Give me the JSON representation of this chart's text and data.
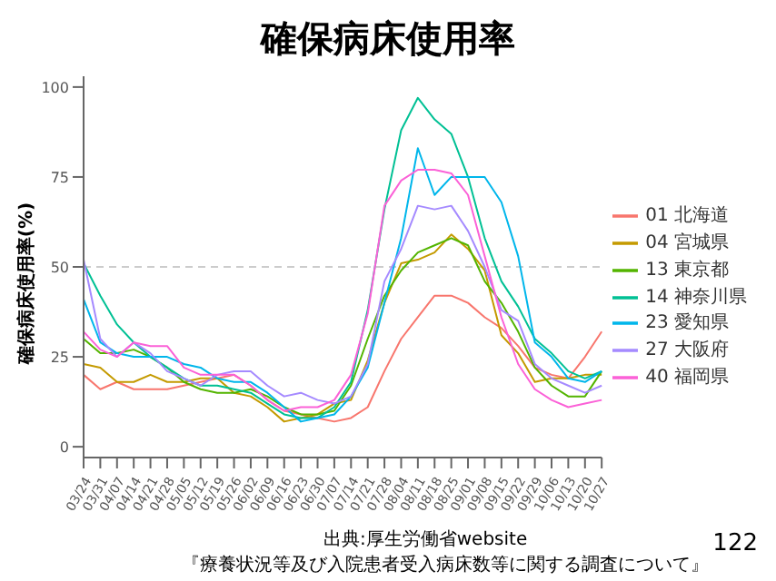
{
  "chart_data": {
    "type": "line",
    "title": "確保病床使用率",
    "ylabel": "確保病床使用率(%)",
    "categories": [
      "03/24",
      "03/31",
      "04/07",
      "04/14",
      "04/21",
      "04/28",
      "05/05",
      "05/12",
      "05/19",
      "05/26",
      "06/02",
      "06/09",
      "06/16",
      "06/23",
      "06/30",
      "07/07",
      "07/14",
      "07/21",
      "07/28",
      "08/04",
      "08/11",
      "08/18",
      "08/25",
      "09/01",
      "09/08",
      "09/15",
      "09/22",
      "09/29",
      "10/06",
      "10/13",
      "10/20",
      "10/27"
    ],
    "series": [
      {
        "name": "01 北海道",
        "color": "#f8766d",
        "values": [
          20,
          16,
          18,
          16,
          16,
          16,
          17,
          18,
          19,
          20,
          17,
          13,
          10,
          9,
          8,
          7,
          8,
          11,
          21,
          30,
          36,
          42,
          42,
          40,
          36,
          33,
          28,
          22,
          20,
          19,
          25,
          32
        ]
      },
      {
        "name": "04 宮城県",
        "color": "#c49a00",
        "values": [
          23,
          22,
          18,
          18,
          20,
          18,
          18,
          19,
          19,
          15,
          14,
          11,
          7,
          8,
          9,
          12,
          13,
          24,
          40,
          51,
          52,
          54,
          59,
          55,
          49,
          31,
          26,
          18,
          19,
          19,
          20,
          20
        ]
      },
      {
        "name": "13 東京都",
        "color": "#53b400",
        "values": [
          30,
          26,
          26,
          27,
          25,
          22,
          18,
          16,
          15,
          15,
          16,
          14,
          11,
          9,
          9,
          10,
          17,
          30,
          42,
          49,
          54,
          56,
          58,
          56,
          46,
          40,
          32,
          22,
          17,
          14,
          14,
          21
        ]
      },
      {
        "name": "14 神奈川県",
        "color": "#00c094",
        "values": [
          51,
          42,
          34,
          29,
          25,
          22,
          19,
          17,
          17,
          16,
          15,
          12,
          9,
          8,
          8,
          11,
          18,
          38,
          66,
          88,
          97,
          91,
          87,
          75,
          58,
          46,
          39,
          30,
          26,
          21,
          19,
          21
        ]
      },
      {
        "name": "23 愛知県",
        "color": "#00b6eb",
        "values": [
          41,
          29,
          26,
          25,
          25,
          25,
          23,
          22,
          19,
          18,
          18,
          15,
          11,
          7,
          8,
          9,
          14,
          22,
          40,
          58,
          83,
          70,
          75,
          75,
          75,
          68,
          53,
          29,
          25,
          19,
          18,
          21
        ]
      },
      {
        "name": "27 大阪府",
        "color": "#a58aff",
        "values": [
          52,
          30,
          25,
          29,
          26,
          21,
          19,
          17,
          20,
          21,
          21,
          17,
          14,
          15,
          13,
          12,
          14,
          23,
          46,
          55,
          67,
          66,
          67,
          60,
          50,
          38,
          35,
          23,
          19,
          17,
          15,
          17
        ]
      },
      {
        "name": "40 福岡県",
        "color": "#fb61d7",
        "values": [
          32,
          27,
          25,
          29,
          28,
          28,
          22,
          20,
          20,
          20,
          17,
          13,
          10,
          11,
          11,
          13,
          20,
          37,
          67,
          74,
          77,
          77,
          76,
          70,
          53,
          36,
          23,
          16,
          13,
          11,
          12,
          13
        ]
      }
    ],
    "ylim": [
      -3,
      103
    ],
    "yticks": [
      0,
      25,
      50,
      75,
      100
    ],
    "grid": false,
    "legend": "right",
    "marker": "none",
    "line_style": "solid",
    "ref_lines": [
      {
        "axis": "y",
        "value": 50,
        "color": "#cccccc",
        "line_style": "dashed"
      }
    ],
    "annotations": [
      "出典:厚生労働省website",
      "『療養状況等及び入院患者受入病床数等に関する調査について』",
      "122"
    ]
  }
}
